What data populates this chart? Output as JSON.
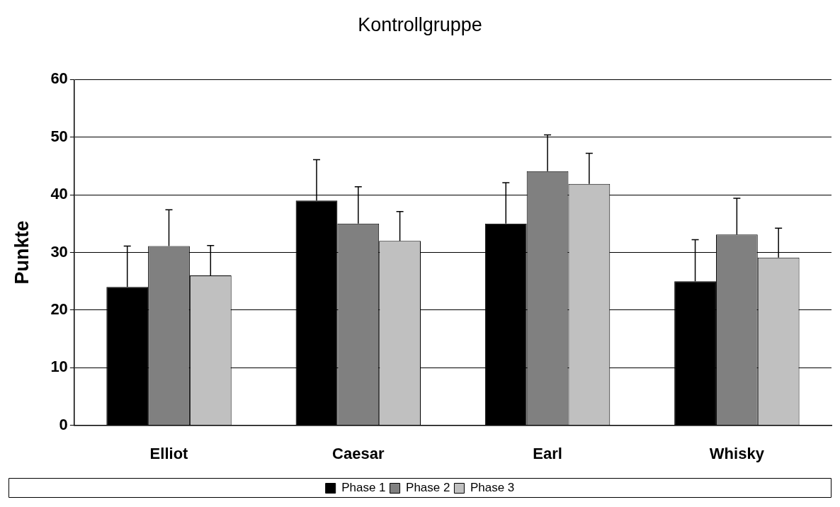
{
  "chart_data": {
    "type": "bar",
    "title": "Kontrollgruppe",
    "ylabel": "Punkte",
    "categories": [
      "Elliot",
      "Caesar",
      "Earl",
      "Whisky"
    ],
    "series": [
      {
        "name": "Phase 1",
        "color": "#000000",
        "values": [
          24,
          39,
          35,
          25
        ],
        "errors": [
          [
            24,
            31.1
          ],
          [
            39,
            46.1
          ],
          [
            35,
            42.1
          ],
          [
            25,
            32.2
          ]
        ]
      },
      {
        "name": "Phase 2",
        "color": "#808080",
        "values": [
          31.1,
          35,
          44.1,
          33.1
        ],
        "errors": [
          [
            31.1,
            37.4
          ],
          [
            35,
            41.4
          ],
          [
            44.1,
            50.4
          ],
          [
            33.1,
            39.4
          ]
        ]
      },
      {
        "name": "Phase 3",
        "color": "#c0c0c0",
        "values": [
          26,
          32,
          41.9,
          29.1
        ],
        "errors": [
          [
            26,
            31.2
          ],
          [
            32,
            37.1
          ],
          [
            41.9,
            47.2
          ],
          [
            29.1,
            34.2
          ]
        ]
      }
    ],
    "ylim": [
      0,
      60
    ],
    "yticks": [
      0,
      10,
      20,
      30,
      40,
      50,
      60
    ],
    "grid": "y",
    "legend": "bottom"
  }
}
